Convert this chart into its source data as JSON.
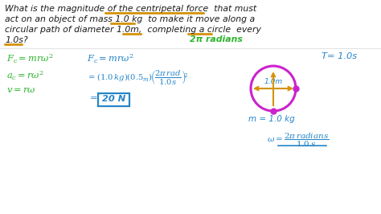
{
  "bg_color": "#ffffff",
  "green_color": "#2db52d",
  "blue_color": "#2585c7",
  "orange_color": "#d4930a",
  "magenta_color": "#cc22cc",
  "dark_text": "#1a1a1a",
  "top_lines": [
    "What is the magnitude of the centripetal force  that must",
    "act on an object of mass 1.0 kg  to make it move along a",
    "circular path of diameter 1.0m,  completing a circle  every",
    "1.0s?"
  ],
  "green_2pi": "2π radians",
  "lc_formulas": [
    "F_c = m r\\omega^2",
    "a_c = r\\omega^2",
    "v = r\\omega"
  ],
  "mc_formula1": "F_c = m r\\omega^2",
  "mc_formula2": "=(1.0\\,kg)(0.5_m)\\!\\left(\\dfrac{2\\pi\\,rad}{1.0s}\\right)^{\\!2}",
  "mc_result": "= 20 N",
  "circle_label": "1.0m",
  "T_label": "T= 1.0s",
  "m_label": "m = 1.0 kg",
  "omega_label": "\\omega = \\dfrac{2\\pi\\,radians}{1.0\\,s}"
}
